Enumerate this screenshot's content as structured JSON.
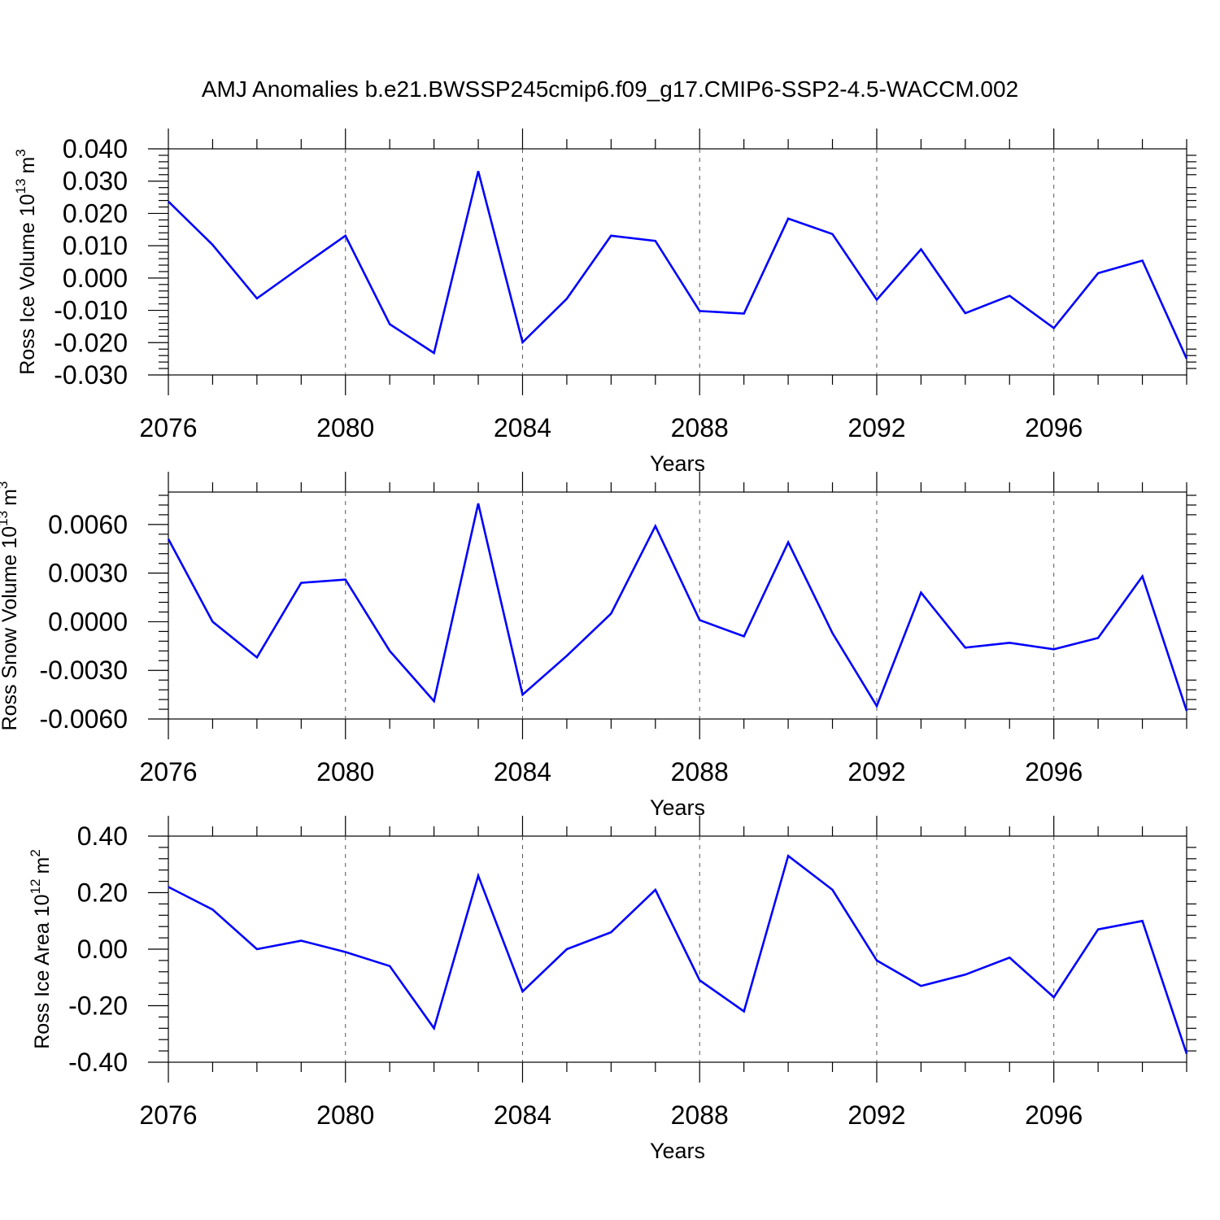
{
  "title": "AMJ Anomalies b.e21.BWSSP245cmip6.f09_g17.CMIP6-SSP2-4.5-WACCM.002",
  "colors": {
    "series": "#0000ff",
    "axis": "#000000"
  },
  "chart_data": [
    {
      "type": "line",
      "ylabel_main": "Ross Ice Volume 10",
      "ylabel_exp": "13",
      "ylabel_unit": "m",
      "ylabel_unit_exp": "3",
      "xlabel": "Years",
      "xlim": [
        2076,
        2099
      ],
      "ylim": [
        -0.03,
        0.04
      ],
      "xticks": [
        "2076",
        "2080",
        "2084",
        "2088",
        "2092",
        "2096"
      ],
      "yticks": [
        "0.040",
        "0.030",
        "0.020",
        "0.010",
        "0.000",
        "-0.010",
        "-0.020",
        "-0.030"
      ],
      "x": [
        2076,
        2077,
        2078,
        2079,
        2080,
        2081,
        2082,
        2083,
        2084,
        2085,
        2086,
        2087,
        2088,
        2089,
        2090,
        2091,
        2092,
        2093,
        2094,
        2095,
        2096,
        2097,
        2098,
        2099
      ],
      "values": [
        0.0237,
        0.0103,
        -0.0063,
        0.0035,
        0.0131,
        -0.0143,
        -0.0232,
        0.0331,
        -0.0199,
        -0.0064,
        0.0131,
        0.0115,
        -0.0102,
        -0.011,
        0.0184,
        0.0136,
        -0.0067,
        0.0089,
        -0.0109,
        -0.0055,
        -0.0155,
        0.0015,
        0.0054,
        -0.025
      ]
    },
    {
      "type": "line",
      "ylabel_main": "Ross Snow Volume 10",
      "ylabel_exp": "13",
      "ylabel_unit": "m",
      "ylabel_unit_exp": "3",
      "xlabel": "Years",
      "xlim": [
        2076,
        2099
      ],
      "ylim": [
        -0.006,
        0.008
      ],
      "xticks": [
        "2076",
        "2080",
        "2084",
        "2088",
        "2092",
        "2096"
      ],
      "yticks": [
        "0.0060",
        "0.0030",
        "0.0000",
        "-0.0030",
        "-0.0060"
      ],
      "x": [
        2076,
        2077,
        2078,
        2079,
        2080,
        2081,
        2082,
        2083,
        2084,
        2085,
        2086,
        2087,
        2088,
        2089,
        2090,
        2091,
        2092,
        2093,
        2094,
        2095,
        2096,
        2097,
        2098,
        2099
      ],
      "values": [
        0.0051,
        0.0,
        -0.0022,
        0.0024,
        0.0026,
        -0.0018,
        -0.0049,
        0.0073,
        -0.0045,
        -0.0021,
        0.0005,
        0.0059,
        0.0001,
        -0.0009,
        0.0049,
        -0.0007,
        -0.0052,
        0.0018,
        -0.0016,
        -0.0013,
        -0.0017,
        -0.001,
        0.0028,
        -0.0055
      ]
    },
    {
      "type": "line",
      "ylabel_main": "Ross Ice Area 10",
      "ylabel_exp": "12",
      "ylabel_unit": "m",
      "ylabel_unit_exp": "2",
      "xlabel": "Years",
      "xlim": [
        2076,
        2099
      ],
      "ylim": [
        -0.4,
        0.4
      ],
      "xticks": [
        "2076",
        "2080",
        "2084",
        "2088",
        "2092",
        "2096"
      ],
      "yticks": [
        "0.40",
        "0.20",
        "0.00",
        "-0.20",
        "-0.40"
      ],
      "x": [
        2076,
        2077,
        2078,
        2079,
        2080,
        2081,
        2082,
        2083,
        2084,
        2085,
        2086,
        2087,
        2088,
        2089,
        2090,
        2091,
        2092,
        2093,
        2094,
        2095,
        2096,
        2097,
        2098,
        2099
      ],
      "values": [
        0.22,
        0.14,
        0.0,
        0.03,
        -0.01,
        -0.06,
        -0.28,
        0.26,
        -0.15,
        0.0,
        0.06,
        0.21,
        -0.11,
        -0.22,
        0.33,
        0.21,
        -0.04,
        -0.13,
        -0.09,
        -0.03,
        -0.17,
        0.07,
        0.1,
        -0.37
      ]
    }
  ]
}
